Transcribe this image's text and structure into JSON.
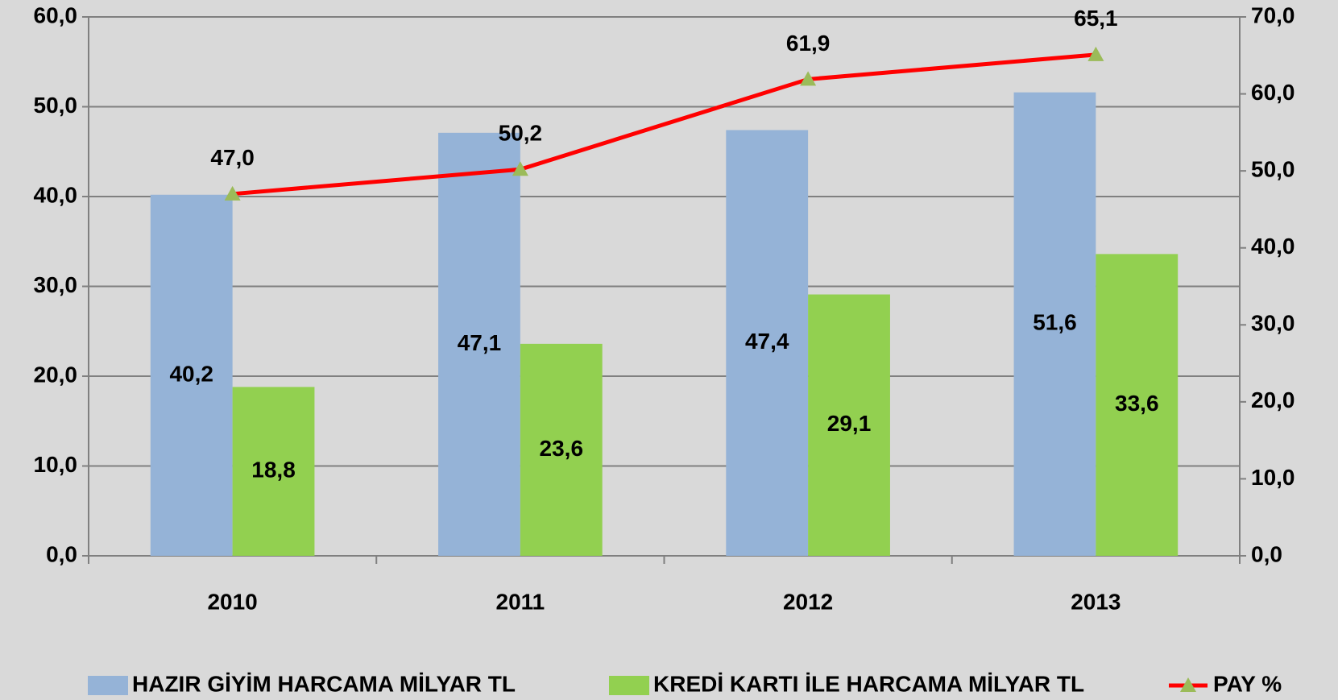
{
  "chart_data": {
    "type": "bar",
    "categories": [
      "2010",
      "2011",
      "2012",
      "2013"
    ],
    "series": [
      {
        "name": "HAZIR GİYİM HARCAMA MİLYAR TL",
        "color": "#95b3d7",
        "values": [
          40.2,
          47.1,
          47.4,
          51.6
        ],
        "value_labels": [
          "40,2",
          "47,1",
          "47,4",
          "51,6"
        ]
      },
      {
        "name": "KREDİ KARTI İLE HARCAMA MİLYAR TL",
        "color": "#92d050",
        "values": [
          18.8,
          23.6,
          29.1,
          33.6
        ],
        "value_labels": [
          "18,8",
          "23,6",
          "29,1",
          "33,6"
        ]
      },
      {
        "name": "PAY %",
        "type": "line",
        "axis": "y2",
        "color": "#ff0000",
        "marker_color": "#9bbb59",
        "values": [
          47.0,
          50.2,
          61.9,
          65.1
        ],
        "value_labels": [
          "47,0",
          "50,2",
          "61,9",
          "65,1"
        ]
      }
    ],
    "ylim": [
      0,
      60
    ],
    "yticks": [
      {
        "value": 0,
        "label": "0,0"
      },
      {
        "value": 10,
        "label": "10,0"
      },
      {
        "value": 20,
        "label": "20,0"
      },
      {
        "value": 30,
        "label": "30,0"
      },
      {
        "value": 40,
        "label": "40,0"
      },
      {
        "value": 50,
        "label": "50,0"
      },
      {
        "value": 60,
        "label": "60,0"
      }
    ],
    "y2lim": [
      0,
      70
    ],
    "y2ticks": [
      {
        "value": 0,
        "label": "0,0"
      },
      {
        "value": 10,
        "label": "10,0"
      },
      {
        "value": 20,
        "label": "20,0"
      },
      {
        "value": 30,
        "label": "30,0"
      },
      {
        "value": 40,
        "label": "40,0"
      },
      {
        "value": 50,
        "label": "50,0"
      },
      {
        "value": 60,
        "label": "60,0"
      },
      {
        "value": 70,
        "label": "70,0"
      }
    ],
    "grid": true,
    "legend": "bottom"
  }
}
